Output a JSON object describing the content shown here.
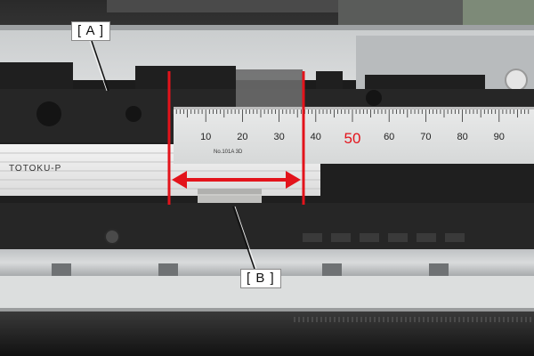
{
  "callouts": {
    "a": "[ A ]",
    "b": "[ B ]"
  },
  "ruler": {
    "tick_labels": [
      "10",
      "20",
      "30",
      "40",
      "50",
      "60",
      "70",
      "80",
      "90"
    ],
    "highlight_label": "50",
    "brand": "No.101A 3D"
  },
  "cable": {
    "text": "TOTOKU-P"
  },
  "colors": {
    "marker": "#e3131b",
    "highlight": "#e3131b"
  }
}
